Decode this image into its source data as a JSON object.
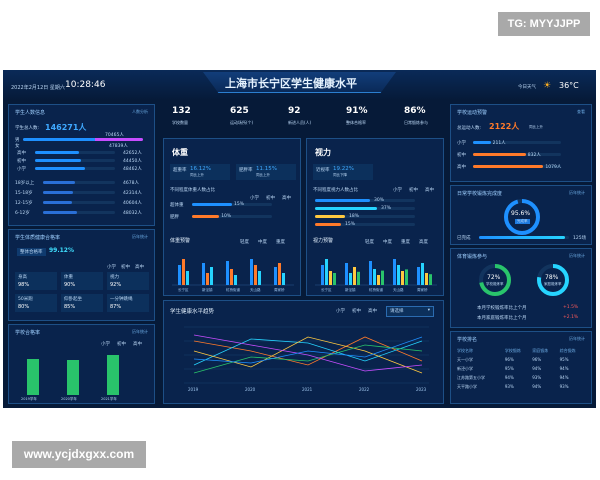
{
  "watermark_top": "TG: MYYJJPP",
  "watermark_bottom": "www.ycjdxgxx.com",
  "header": {
    "date": "2022年2月12日 星期六",
    "time": "10:28:46",
    "title": "上海市长宁区学生健康水平",
    "weather_label": "今日天气",
    "temperature": "36°C"
  },
  "colors": {
    "bg": "#061a38",
    "accent": "#1e90ff",
    "cyan": "#26d4ff",
    "orange": "#ff7a2a",
    "green": "#29c46b"
  },
  "kpis": [
    {
      "value": "132",
      "label": "学校数量"
    },
    {
      "value": "625",
      "label": "运动场所(个)"
    },
    {
      "value": "92",
      "label": "新进人员(人)"
    },
    {
      "value": "91%",
      "label": "整体合格率"
    },
    {
      "value": "86%",
      "label": "日常锻炼参与"
    }
  ],
  "students": {
    "title": "学生人数信息",
    "link": "人数分析",
    "total_label": "学生总人数:",
    "total_value": "146271人",
    "gender": [
      {
        "label": "男",
        "value": "70465人"
      },
      {
        "label": "女",
        "value": "47839人"
      }
    ],
    "grades": [
      {
        "label": "高中",
        "value": "42652人",
        "frac": 0.55
      },
      {
        "label": "初中",
        "value": "44450人",
        "frac": 0.58
      },
      {
        "label": "小学",
        "value": "48462人",
        "frac": 0.63
      }
    ],
    "ages": [
      {
        "label": "18岁以上",
        "value": "4678人",
        "frac": 0.45
      },
      {
        "label": "15-18岁",
        "value": "42314人",
        "frac": 0.42
      },
      {
        "label": "12-15岁",
        "value": "40604人",
        "frac": 0.4
      },
      {
        "label": "6-12岁",
        "value": "48032人",
        "frac": 0.47
      }
    ]
  },
  "health": {
    "title": "学生体质健康合格率",
    "link": "历年统计",
    "rate_label": "整体合格率",
    "rate_value": "99.12%",
    "tabs": [
      "小学",
      "初中",
      "高中"
    ],
    "cells": [
      {
        "label": "身高",
        "value": "98%"
      },
      {
        "label": "体重",
        "value": "90%"
      },
      {
        "label": "视力",
        "value": "92%"
      },
      {
        "label": "50米跑",
        "value": "80%"
      },
      {
        "label": "仰卧起坐",
        "value": "85%"
      },
      {
        "label": "一分钟跳绳",
        "value": "87%"
      }
    ]
  },
  "exam": {
    "title": "学校合格率",
    "link": "历年统计",
    "tabs": [
      "小学",
      "初中",
      "高中"
    ],
    "categories": [
      "2019学年",
      "2020学年",
      "2021学年"
    ],
    "values": [
      80,
      78,
      90
    ]
  },
  "weight": {
    "title": "体重",
    "s1_label": "超重率",
    "s1_value": "16.12%",
    "s1_sub": "同比上升",
    "s2_label": "肥胖率",
    "s2_value": "11.15%",
    "s2_sub": "同比上升",
    "sub": "不同程度体重人数占比",
    "tabs": [
      "小学",
      "初中",
      "高中"
    ],
    "rows": [
      {
        "label": "超体重",
        "value": "15%",
        "frac": 0.5
      },
      {
        "label": "肥胖",
        "value": "10%",
        "frac": 0.34
      }
    ],
    "chart_title": "体重预警",
    "legend": [
      "轻度",
      "中度",
      "重度"
    ],
    "x": [
      "长宁区",
      "新泾镇",
      "虹桥街道",
      "天山路",
      "周家桥"
    ]
  },
  "vision": {
    "title": "视力",
    "s1_label": "近视率",
    "s1_value": "19.22%",
    "s1_sub": "同比下降",
    "sub": "不同程度视力人数占比",
    "tabs": [
      "小学",
      "初中",
      "高中"
    ],
    "rows": [
      {
        "label": "",
        "value": "30%",
        "frac": 0.55
      },
      {
        "label": "",
        "value": "37%",
        "frac": 0.62
      },
      {
        "label": "",
        "value": "18%",
        "frac": 0.3
      },
      {
        "label": "",
        "value": "15%",
        "frac": 0.26
      }
    ],
    "chart_title": "视力预警",
    "legend": [
      "轻度",
      "中度",
      "重度",
      "高度"
    ],
    "x": [
      "长宁区",
      "新泾镇",
      "虹桥街道",
      "天山路",
      "周家桥"
    ]
  },
  "trend": {
    "title": "学生健康水平趋势",
    "tabs": [
      "小学",
      "初中",
      "高中"
    ],
    "select": "请选择",
    "x": [
      "2019",
      "2020",
      "2021",
      "2022",
      "2023"
    ]
  },
  "right1": {
    "title": "学校运动预警",
    "link": "查看",
    "total_label": "总运动人数:",
    "total_value": "2122人",
    "total_sub": "同比上升",
    "rows": [
      {
        "label": "小学",
        "value": "211人",
        "frac": 0.2
      },
      {
        "label": "初中",
        "value": "832人",
        "frac": 0.6
      },
      {
        "label": "高中",
        "value": "1079人",
        "frac": 0.8
      }
    ]
  },
  "right2": {
    "title": "日常学校锻炼完成度",
    "link": "历年统计",
    "ring_value": "95.6%",
    "ring_label": "完成率",
    "done_label": "已完成",
    "done_value": "125场",
    "frac": 0.956
  },
  "right3": {
    "title": "体育锻炼参与",
    "link": "历年统计",
    "r1_value": "72%",
    "r1_label": "学校锻炼率",
    "r1_frac": 0.72,
    "r2_value": "78%",
    "r2_label": "家庭锻炼率",
    "r2_frac": 0.78,
    "note1": "本月学校锻炼率比上个月",
    "note1_val": "+1.5%",
    "note2": "本月家庭锻炼率比上个月",
    "note2_val": "+2.1%"
  },
  "right4": {
    "title": "学校排名",
    "link": "历年统计",
    "headers": [
      "学校名称",
      "学校锻炼",
      "家庭锻炼",
      "综合锻炼"
    ],
    "rows": [
      [
        "天一小学",
        "96%",
        "96%",
        "95%"
      ],
      [
        "新泾小学",
        "95%",
        "94%",
        "94%"
      ],
      [
        "江苏路第五小学",
        "94%",
        "93%",
        "94%"
      ],
      [
        "天平路小学",
        "93%",
        "94%",
        "93%"
      ]
    ]
  }
}
